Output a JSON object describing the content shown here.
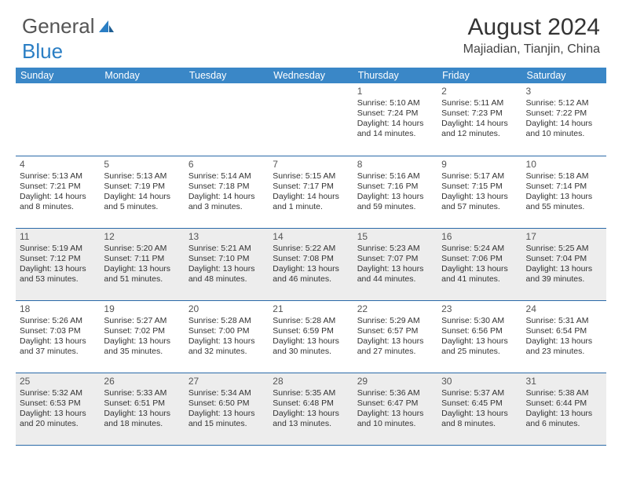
{
  "brand": {
    "part1": "General",
    "part2": "Blue"
  },
  "title": "August 2024",
  "subtitle": "Majiadian, Tianjin, China",
  "colors": {
    "header_bg": "#3a87c7",
    "header_text": "#ffffff",
    "rule": "#2a6aa8",
    "shade": "#ededed",
    "body_text": "#333333",
    "logo_blue": "#2a7ec4"
  },
  "day_headers": [
    "Sunday",
    "Monday",
    "Tuesday",
    "Wednesday",
    "Thursday",
    "Friday",
    "Saturday"
  ],
  "weeks": [
    [
      {
        "empty": true
      },
      {
        "empty": true
      },
      {
        "empty": true
      },
      {
        "empty": true
      },
      {
        "day": "1",
        "sunrise": "Sunrise: 5:10 AM",
        "sunset": "Sunset: 7:24 PM",
        "daylight": "Daylight: 14 hours and 14 minutes."
      },
      {
        "day": "2",
        "sunrise": "Sunrise: 5:11 AM",
        "sunset": "Sunset: 7:23 PM",
        "daylight": "Daylight: 14 hours and 12 minutes."
      },
      {
        "day": "3",
        "sunrise": "Sunrise: 5:12 AM",
        "sunset": "Sunset: 7:22 PM",
        "daylight": "Daylight: 14 hours and 10 minutes."
      }
    ],
    [
      {
        "day": "4",
        "sunrise": "Sunrise: 5:13 AM",
        "sunset": "Sunset: 7:21 PM",
        "daylight": "Daylight: 14 hours and 8 minutes."
      },
      {
        "day": "5",
        "sunrise": "Sunrise: 5:13 AM",
        "sunset": "Sunset: 7:19 PM",
        "daylight": "Daylight: 14 hours and 5 minutes."
      },
      {
        "day": "6",
        "sunrise": "Sunrise: 5:14 AM",
        "sunset": "Sunset: 7:18 PM",
        "daylight": "Daylight: 14 hours and 3 minutes."
      },
      {
        "day": "7",
        "sunrise": "Sunrise: 5:15 AM",
        "sunset": "Sunset: 7:17 PM",
        "daylight": "Daylight: 14 hours and 1 minute."
      },
      {
        "day": "8",
        "sunrise": "Sunrise: 5:16 AM",
        "sunset": "Sunset: 7:16 PM",
        "daylight": "Daylight: 13 hours and 59 minutes."
      },
      {
        "day": "9",
        "sunrise": "Sunrise: 5:17 AM",
        "sunset": "Sunset: 7:15 PM",
        "daylight": "Daylight: 13 hours and 57 minutes."
      },
      {
        "day": "10",
        "sunrise": "Sunrise: 5:18 AM",
        "sunset": "Sunset: 7:14 PM",
        "daylight": "Daylight: 13 hours and 55 minutes."
      }
    ],
    [
      {
        "day": "11",
        "shade": true,
        "sunrise": "Sunrise: 5:19 AM",
        "sunset": "Sunset: 7:12 PM",
        "daylight": "Daylight: 13 hours and 53 minutes."
      },
      {
        "day": "12",
        "shade": true,
        "sunrise": "Sunrise: 5:20 AM",
        "sunset": "Sunset: 7:11 PM",
        "daylight": "Daylight: 13 hours and 51 minutes."
      },
      {
        "day": "13",
        "shade": true,
        "sunrise": "Sunrise: 5:21 AM",
        "sunset": "Sunset: 7:10 PM",
        "daylight": "Daylight: 13 hours and 48 minutes."
      },
      {
        "day": "14",
        "shade": true,
        "sunrise": "Sunrise: 5:22 AM",
        "sunset": "Sunset: 7:08 PM",
        "daylight": "Daylight: 13 hours and 46 minutes."
      },
      {
        "day": "15",
        "shade": true,
        "sunrise": "Sunrise: 5:23 AM",
        "sunset": "Sunset: 7:07 PM",
        "daylight": "Daylight: 13 hours and 44 minutes."
      },
      {
        "day": "16",
        "shade": true,
        "sunrise": "Sunrise: 5:24 AM",
        "sunset": "Sunset: 7:06 PM",
        "daylight": "Daylight: 13 hours and 41 minutes."
      },
      {
        "day": "17",
        "shade": true,
        "sunrise": "Sunrise: 5:25 AM",
        "sunset": "Sunset: 7:04 PM",
        "daylight": "Daylight: 13 hours and 39 minutes."
      }
    ],
    [
      {
        "day": "18",
        "sunrise": "Sunrise: 5:26 AM",
        "sunset": "Sunset: 7:03 PM",
        "daylight": "Daylight: 13 hours and 37 minutes."
      },
      {
        "day": "19",
        "sunrise": "Sunrise: 5:27 AM",
        "sunset": "Sunset: 7:02 PM",
        "daylight": "Daylight: 13 hours and 35 minutes."
      },
      {
        "day": "20",
        "sunrise": "Sunrise: 5:28 AM",
        "sunset": "Sunset: 7:00 PM",
        "daylight": "Daylight: 13 hours and 32 minutes."
      },
      {
        "day": "21",
        "sunrise": "Sunrise: 5:28 AM",
        "sunset": "Sunset: 6:59 PM",
        "daylight": "Daylight: 13 hours and 30 minutes."
      },
      {
        "day": "22",
        "sunrise": "Sunrise: 5:29 AM",
        "sunset": "Sunset: 6:57 PM",
        "daylight": "Daylight: 13 hours and 27 minutes."
      },
      {
        "day": "23",
        "sunrise": "Sunrise: 5:30 AM",
        "sunset": "Sunset: 6:56 PM",
        "daylight": "Daylight: 13 hours and 25 minutes."
      },
      {
        "day": "24",
        "sunrise": "Sunrise: 5:31 AM",
        "sunset": "Sunset: 6:54 PM",
        "daylight": "Daylight: 13 hours and 23 minutes."
      }
    ],
    [
      {
        "day": "25",
        "shade": true,
        "sunrise": "Sunrise: 5:32 AM",
        "sunset": "Sunset: 6:53 PM",
        "daylight": "Daylight: 13 hours and 20 minutes."
      },
      {
        "day": "26",
        "shade": true,
        "sunrise": "Sunrise: 5:33 AM",
        "sunset": "Sunset: 6:51 PM",
        "daylight": "Daylight: 13 hours and 18 minutes."
      },
      {
        "day": "27",
        "shade": true,
        "sunrise": "Sunrise: 5:34 AM",
        "sunset": "Sunset: 6:50 PM",
        "daylight": "Daylight: 13 hours and 15 minutes."
      },
      {
        "day": "28",
        "shade": true,
        "sunrise": "Sunrise: 5:35 AM",
        "sunset": "Sunset: 6:48 PM",
        "daylight": "Daylight: 13 hours and 13 minutes."
      },
      {
        "day": "29",
        "shade": true,
        "sunrise": "Sunrise: 5:36 AM",
        "sunset": "Sunset: 6:47 PM",
        "daylight": "Daylight: 13 hours and 10 minutes."
      },
      {
        "day": "30",
        "shade": true,
        "sunrise": "Sunrise: 5:37 AM",
        "sunset": "Sunset: 6:45 PM",
        "daylight": "Daylight: 13 hours and 8 minutes."
      },
      {
        "day": "31",
        "shade": true,
        "sunrise": "Sunrise: 5:38 AM",
        "sunset": "Sunset: 6:44 PM",
        "daylight": "Daylight: 13 hours and 6 minutes."
      }
    ]
  ]
}
